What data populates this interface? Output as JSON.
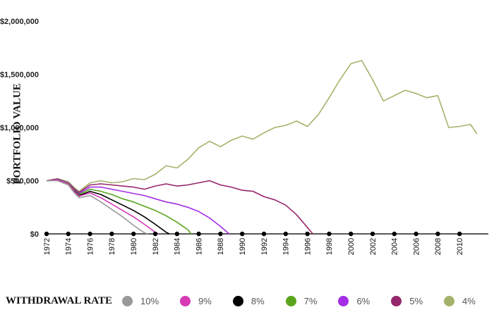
{
  "chart_data": {
    "type": "line",
    "title": "",
    "xlabel": "",
    "ylabel": "PORTFOLIO VALUE",
    "xlim": [
      1972,
      2012
    ],
    "ylim": [
      0,
      2000000
    ],
    "x_ticks": [
      "1972",
      "1974",
      "1976",
      "1978",
      "1980",
      "1982",
      "1984",
      "1986",
      "1988",
      "1990",
      "1992",
      "1994",
      "1996",
      "1998",
      "2000",
      "2002",
      "2004",
      "2006",
      "2008",
      "2010"
    ],
    "y_ticks": [
      {
        "value": 0,
        "label": "$0"
      },
      {
        "value": 500000,
        "label": "$500,000"
      },
      {
        "value": 1000000,
        "label": "$1,000,000"
      },
      {
        "value": 1500000,
        "label": "$1,500,000"
      },
      {
        "value": 2000000,
        "label": "$2,000,000"
      }
    ],
    "grid": false,
    "legend_placement": "bottom",
    "legend_title": "WITHDRAWAL RATE",
    "series": [
      {
        "name": "10%",
        "color": "#999999",
        "x": [
          1972,
          1973,
          1974,
          1974.6,
          1975,
          1976,
          1977,
          1978,
          1979,
          1980,
          1981,
          1981.3
        ],
        "y": [
          500000,
          500000,
          460000,
          380000,
          340000,
          360000,
          300000,
          230000,
          160000,
          80000,
          10000,
          0
        ]
      },
      {
        "name": "9%",
        "color": "#d63ab5",
        "x": [
          1972,
          1973,
          1974,
          1974.6,
          1975,
          1976,
          1977,
          1978,
          1979,
          1980,
          1981,
          1982,
          1982.3
        ],
        "y": [
          500000,
          505000,
          470000,
          395000,
          355000,
          385000,
          340000,
          280000,
          220000,
          160000,
          90000,
          15000,
          0
        ]
      },
      {
        "name": "8%",
        "color": "#000000",
        "x": [
          1972,
          1973,
          1974,
          1974.6,
          1975,
          1976,
          1977,
          1978,
          1979,
          1980,
          1981,
          1982,
          1983,
          1983.3
        ],
        "y": [
          500000,
          505000,
          470000,
          400000,
          360000,
          400000,
          370000,
          320000,
          270000,
          220000,
          160000,
          90000,
          15000,
          0
        ]
      },
      {
        "name": "7%",
        "color": "#5aa51d",
        "x": [
          1972,
          1973,
          1974,
          1974.6,
          1975,
          1976,
          1977,
          1978,
          1979,
          1980,
          1981,
          1982,
          1983,
          1984,
          1985,
          1985.3
        ],
        "y": [
          500000,
          505000,
          475000,
          405000,
          370000,
          420000,
          400000,
          370000,
          330000,
          300000,
          260000,
          220000,
          170000,
          110000,
          40000,
          0
        ]
      },
      {
        "name": "6%",
        "color": "#a42ee6",
        "x": [
          1972,
          1973,
          1974,
          1974.6,
          1975,
          1976,
          1977,
          1978,
          1979,
          1980,
          1981,
          1982,
          1983,
          1984,
          1985,
          1986,
          1987,
          1988,
          1988.8
        ],
        "y": [
          500000,
          510000,
          480000,
          410000,
          380000,
          440000,
          440000,
          420000,
          400000,
          380000,
          360000,
          330000,
          300000,
          280000,
          250000,
          210000,
          150000,
          70000,
          0
        ]
      },
      {
        "name": "5%",
        "color": "#96266c",
        "x": [
          1972,
          1973,
          1974,
          1974.6,
          1975,
          1976,
          1977,
          1978,
          1979,
          1980,
          1981,
          1982,
          1983,
          1984,
          1985,
          1986,
          1987,
          1988,
          1989,
          1990,
          1991,
          1992,
          1993,
          1994,
          1995,
          1996,
          1996.5
        ],
        "y": [
          500000,
          515000,
          480000,
          420000,
          390000,
          460000,
          470000,
          460000,
          450000,
          440000,
          420000,
          450000,
          470000,
          450000,
          460000,
          480000,
          500000,
          460000,
          440000,
          410000,
          400000,
          350000,
          320000,
          270000,
          180000,
          60000,
          0
        ]
      },
      {
        "name": "4%",
        "color": "#a4b36b",
        "x": [
          1972,
          1973,
          1974,
          1974.6,
          1975,
          1976,
          1977,
          1978,
          1979,
          1980,
          1981,
          1982,
          1983,
          1984,
          1985,
          1986,
          1987,
          1988,
          1989,
          1990,
          1991,
          1992,
          1993,
          1994,
          1995,
          1996,
          1997,
          1998,
          1999,
          2000,
          2001,
          2002,
          2003,
          2004,
          2005,
          2006,
          2007,
          2008,
          2009,
          2010,
          2011,
          2011.6
        ],
        "y": [
          500000,
          520000,
          490000,
          430000,
          400000,
          480000,
          500000,
          480000,
          490000,
          520000,
          510000,
          560000,
          640000,
          620000,
          700000,
          810000,
          870000,
          820000,
          880000,
          920000,
          890000,
          950000,
          1000000,
          1020000,
          1060000,
          1010000,
          1120000,
          1280000,
          1450000,
          1600000,
          1630000,
          1450000,
          1250000,
          1300000,
          1350000,
          1320000,
          1280000,
          1300000,
          1000000,
          1010000,
          1030000,
          940000
        ]
      }
    ],
    "zero_markers": [
      1972,
      1974,
      1976,
      1978,
      1980,
      1982,
      1984,
      1986,
      1988,
      1990,
      1992,
      1994,
      1996,
      1998,
      2000,
      2002,
      2004,
      2006,
      2008,
      2010
    ]
  }
}
